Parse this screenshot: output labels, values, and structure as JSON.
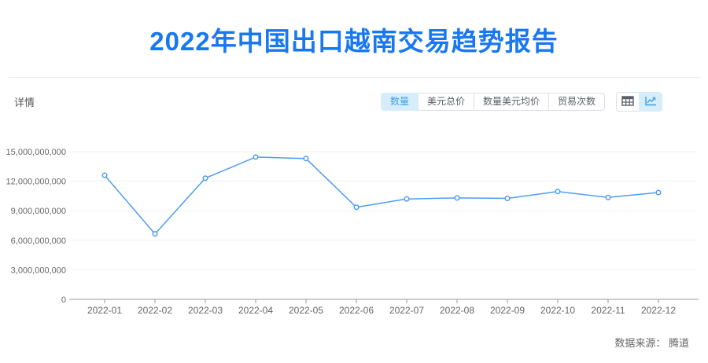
{
  "header": {
    "title": "2022年中国出口越南交易趋势报告",
    "title_color": "#1778f2"
  },
  "controls": {
    "details_label": "详情",
    "metric_tabs": [
      {
        "label": "数量",
        "active": true
      },
      {
        "label": "美元总价",
        "active": false
      },
      {
        "label": "数量美元均价",
        "active": false
      },
      {
        "label": "贸易次数",
        "active": false
      }
    ],
    "view_toggles": [
      {
        "icon": "table-grid-icon",
        "active": false
      },
      {
        "icon": "line-chart-icon",
        "active": true
      }
    ],
    "active_bg": "#d8edfa",
    "active_text": "#3aa2e4"
  },
  "chart_data": {
    "type": "line",
    "title": "",
    "xlabel": "",
    "ylabel": "",
    "categories": [
      "2022-01",
      "2022-02",
      "2022-03",
      "2022-04",
      "2022-05",
      "2022-06",
      "2022-07",
      "2022-08",
      "2022-09",
      "2022-10",
      "2022-11",
      "2022-12"
    ],
    "values": [
      12600000000,
      6650000000,
      12300000000,
      14450000000,
      14300000000,
      9350000000,
      10200000000,
      10300000000,
      10250000000,
      10950000000,
      10350000000,
      10850000000
    ],
    "ylim": [
      0,
      15000000000
    ],
    "ytick_interval": 3000000000,
    "grid": true,
    "legend": "none",
    "line_color": "#4f9cf3",
    "marker": "hollow-circle",
    "grid_color": "#eff1f6",
    "axis_color": "#999999",
    "tick_label_color": "#666666"
  },
  "footer": {
    "source_text": "数据来源： 腾道"
  }
}
